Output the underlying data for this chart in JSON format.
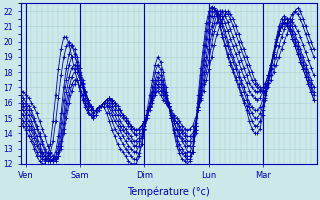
{
  "xlabel": "Température (°c)",
  "xlim": [
    0,
    110
  ],
  "ylim": [
    12,
    22.5
  ],
  "yticks": [
    12,
    13,
    14,
    15,
    16,
    17,
    18,
    19,
    20,
    21,
    22
  ],
  "day_positions": [
    2,
    22,
    46,
    70,
    90
  ],
  "day_labels": [
    "Ven",
    "Sam",
    "Dim",
    "Lun",
    "Mar"
  ],
  "day_vlines": [
    2,
    22,
    46,
    70,
    90
  ],
  "n_points": 110,
  "bg_color": "#cce8e8",
  "grid_color": "#aacccc",
  "line_color": "#0000bb",
  "series": [
    [
      16.8,
      16.7,
      16.5,
      16.3,
      16.0,
      15.7,
      15.3,
      14.8,
      14.3,
      13.8,
      13.2,
      12.8,
      12.5,
      12.4,
      12.5,
      13.0,
      14.0,
      15.0,
      16.0,
      16.8,
      17.2,
      17.5,
      17.0,
      16.5,
      16.0,
      15.5,
      15.2,
      15.0,
      15.2,
      15.5,
      15.8,
      16.0,
      16.2,
      16.3,
      16.2,
      16.0,
      15.8,
      15.5,
      15.2,
      15.0,
      14.8,
      14.5,
      14.3,
      14.2,
      14.3,
      14.5,
      14.8,
      15.2,
      15.5,
      16.0,
      16.5,
      16.8,
      16.5,
      16.2,
      16.0,
      15.8,
      15.5,
      15.2,
      15.0,
      14.8,
      14.5,
      14.3,
      14.2,
      14.3,
      14.5,
      15.0,
      15.5,
      16.2,
      16.8,
      17.5,
      18.2,
      19.0,
      19.8,
      20.5,
      21.0,
      21.5,
      21.8,
      22.0,
      21.8,
      21.5,
      21.0,
      20.5,
      20.0,
      19.5,
      19.0,
      18.5,
      18.0,
      17.5,
      17.2,
      17.0,
      16.8,
      16.8,
      17.0,
      17.5,
      18.0,
      18.5,
      19.0,
      19.5,
      20.0,
      20.5,
      21.0,
      21.5,
      22.0,
      22.2,
      22.0,
      21.5,
      21.0,
      20.5,
      20.0,
      19.5
    ],
    [
      16.5,
      16.3,
      16.0,
      15.8,
      15.5,
      15.0,
      14.5,
      14.0,
      13.5,
      13.0,
      12.7,
      12.5,
      12.3,
      12.3,
      12.5,
      13.2,
      14.3,
      15.5,
      16.5,
      17.2,
      17.5,
      17.5,
      17.0,
      16.5,
      16.0,
      15.5,
      15.2,
      15.0,
      15.2,
      15.5,
      15.8,
      16.0,
      16.2,
      16.3,
      16.2,
      16.0,
      15.8,
      15.5,
      15.2,
      15.0,
      14.7,
      14.5,
      14.3,
      14.2,
      14.3,
      14.5,
      14.8,
      15.2,
      15.7,
      16.2,
      16.7,
      17.0,
      16.8,
      16.5,
      16.0,
      15.7,
      15.3,
      15.0,
      14.7,
      14.5,
      14.2,
      14.0,
      13.8,
      13.8,
      14.0,
      14.7,
      15.5,
      16.3,
      17.2,
      18.0,
      18.8,
      19.8,
      20.7,
      21.3,
      21.8,
      22.0,
      22.0,
      21.8,
      21.5,
      21.0,
      20.5,
      20.0,
      19.5,
      19.0,
      18.5,
      18.0,
      17.5,
      17.2,
      17.0,
      16.8,
      16.8,
      17.0,
      17.3,
      17.8,
      18.5,
      19.0,
      19.7,
      20.3,
      20.8,
      21.2,
      21.5,
      21.8,
      22.0,
      21.8,
      21.5,
      21.0,
      20.5,
      20.0,
      19.5,
      19.0
    ],
    [
      16.2,
      16.0,
      15.8,
      15.5,
      15.2,
      14.8,
      14.3,
      13.8,
      13.3,
      12.8,
      12.5,
      12.3,
      12.2,
      12.2,
      12.5,
      13.5,
      14.7,
      16.0,
      17.0,
      17.7,
      18.0,
      18.0,
      17.5,
      17.0,
      16.5,
      16.0,
      15.7,
      15.5,
      15.5,
      15.7,
      15.8,
      16.0,
      16.2,
      16.3,
      16.0,
      15.8,
      15.5,
      15.2,
      15.0,
      14.8,
      14.5,
      14.3,
      14.0,
      13.9,
      14.0,
      14.3,
      14.7,
      15.2,
      15.8,
      16.3,
      16.8,
      17.2,
      17.0,
      16.7,
      16.2,
      15.8,
      15.3,
      15.0,
      14.7,
      14.3,
      14.0,
      13.8,
      13.5,
      13.5,
      13.8,
      14.5,
      15.5,
      16.5,
      17.5,
      18.5,
      19.5,
      20.5,
      21.2,
      21.8,
      22.0,
      22.0,
      21.7,
      21.3,
      20.8,
      20.3,
      19.8,
      19.3,
      18.8,
      18.3,
      17.8,
      17.3,
      17.0,
      16.8,
      16.7,
      16.8,
      17.0,
      17.3,
      17.8,
      18.5,
      19.2,
      19.8,
      20.5,
      21.0,
      21.3,
      21.5,
      21.5,
      21.3,
      21.0,
      20.7,
      20.3,
      19.8,
      19.3,
      18.8,
      18.3,
      17.8
    ],
    [
      16.0,
      15.8,
      15.5,
      15.2,
      14.8,
      14.3,
      13.8,
      13.3,
      12.8,
      12.5,
      12.3,
      12.2,
      12.2,
      12.3,
      12.8,
      14.0,
      15.3,
      16.7,
      17.7,
      18.3,
      18.5,
      18.3,
      17.8,
      17.2,
      16.7,
      16.2,
      15.8,
      15.5,
      15.5,
      15.7,
      15.8,
      16.0,
      16.2,
      16.3,
      15.8,
      15.5,
      15.2,
      14.8,
      14.5,
      14.3,
      14.0,
      13.8,
      13.5,
      13.5,
      13.7,
      14.0,
      14.5,
      15.2,
      15.8,
      16.5,
      17.0,
      17.5,
      17.2,
      16.8,
      16.3,
      15.8,
      15.2,
      14.8,
      14.3,
      14.0,
      13.7,
      13.5,
      13.2,
      13.2,
      13.5,
      14.5,
      15.7,
      16.8,
      18.0,
      19.0,
      20.2,
      21.0,
      21.7,
      22.0,
      22.0,
      21.7,
      21.2,
      20.7,
      20.2,
      19.7,
      19.2,
      18.7,
      18.2,
      17.7,
      17.3,
      16.8,
      16.5,
      16.3,
      16.2,
      16.3,
      16.7,
      17.2,
      17.8,
      18.5,
      19.2,
      20.0,
      20.7,
      21.2,
      21.5,
      21.5,
      21.3,
      21.0,
      20.5,
      20.0,
      19.5,
      19.0,
      18.5,
      18.0,
      17.5,
      17.0
    ],
    [
      15.7,
      15.5,
      15.2,
      14.8,
      14.5,
      14.0,
      13.5,
      13.0,
      12.7,
      12.5,
      12.3,
      12.2,
      12.2,
      12.5,
      13.2,
      14.7,
      16.2,
      17.5,
      18.5,
      19.0,
      19.0,
      18.7,
      18.0,
      17.3,
      16.7,
      16.2,
      15.8,
      15.5,
      15.5,
      15.7,
      15.8,
      16.0,
      16.2,
      16.0,
      15.5,
      15.2,
      14.8,
      14.5,
      14.2,
      14.0,
      13.7,
      13.5,
      13.2,
      13.2,
      13.5,
      13.8,
      14.3,
      15.0,
      15.7,
      16.5,
      17.2,
      17.7,
      17.5,
      17.0,
      16.5,
      15.8,
      15.2,
      14.7,
      14.2,
      13.8,
      13.5,
      13.2,
      12.8,
      12.8,
      13.2,
      14.2,
      15.7,
      17.0,
      18.5,
      19.7,
      20.8,
      21.7,
      22.0,
      22.0,
      21.7,
      21.2,
      20.7,
      20.0,
      19.5,
      19.0,
      18.5,
      18.0,
      17.5,
      17.0,
      16.5,
      16.0,
      15.7,
      15.5,
      15.5,
      15.7,
      16.2,
      16.8,
      17.5,
      18.3,
      19.0,
      19.8,
      20.5,
      21.0,
      21.2,
      21.2,
      21.0,
      20.7,
      20.2,
      19.7,
      19.2,
      18.7,
      18.2,
      17.7,
      17.2,
      16.7
    ],
    [
      15.3,
      15.2,
      14.8,
      14.5,
      14.2,
      13.7,
      13.2,
      12.8,
      12.5,
      12.3,
      12.2,
      12.2,
      12.3,
      12.8,
      13.8,
      15.3,
      17.0,
      18.3,
      19.2,
      19.7,
      19.5,
      19.0,
      18.3,
      17.5,
      16.8,
      16.2,
      15.8,
      15.5,
      15.5,
      15.7,
      15.8,
      16.0,
      16.0,
      15.7,
      15.2,
      14.8,
      14.5,
      14.2,
      13.8,
      13.5,
      13.2,
      13.0,
      12.8,
      12.8,
      13.2,
      13.7,
      14.3,
      15.0,
      15.8,
      16.7,
      17.5,
      18.0,
      17.8,
      17.2,
      16.5,
      15.8,
      15.0,
      14.3,
      13.8,
      13.3,
      13.0,
      12.7,
      12.5,
      12.5,
      12.8,
      14.0,
      15.7,
      17.3,
      18.8,
      20.2,
      21.3,
      22.0,
      22.2,
      22.0,
      21.5,
      21.0,
      20.3,
      19.7,
      19.2,
      18.7,
      18.2,
      17.7,
      17.2,
      16.7,
      16.2,
      15.7,
      15.3,
      15.0,
      15.0,
      15.3,
      15.8,
      16.5,
      17.3,
      18.2,
      19.0,
      19.8,
      20.5,
      21.0,
      21.2,
      21.0,
      20.7,
      20.2,
      19.7,
      19.2,
      18.7,
      18.2,
      17.7,
      17.2,
      16.7,
      16.2
    ],
    [
      15.0,
      14.8,
      14.5,
      14.2,
      13.8,
      13.3,
      12.8,
      12.5,
      12.3,
      12.2,
      12.3,
      12.7,
      13.5,
      14.8,
      16.3,
      17.8,
      19.0,
      19.7,
      20.0,
      19.8,
      19.2,
      18.5,
      17.7,
      17.0,
      16.3,
      15.8,
      15.5,
      15.3,
      15.5,
      15.7,
      15.8,
      16.0,
      15.8,
      15.3,
      14.8,
      14.3,
      14.0,
      13.7,
      13.3,
      13.0,
      12.8,
      12.5,
      12.3,
      12.3,
      12.7,
      13.3,
      14.2,
      15.2,
      16.0,
      17.0,
      18.0,
      18.5,
      18.2,
      17.5,
      16.7,
      15.8,
      15.0,
      14.2,
      13.5,
      13.0,
      12.7,
      12.5,
      12.3,
      12.3,
      12.8,
      14.2,
      16.0,
      17.8,
      19.3,
      20.7,
      21.7,
      22.2,
      22.2,
      21.8,
      21.2,
      20.5,
      19.8,
      19.2,
      18.7,
      18.2,
      17.7,
      17.2,
      16.7,
      16.2,
      15.8,
      15.3,
      14.8,
      14.5,
      14.5,
      14.8,
      15.5,
      16.3,
      17.3,
      18.2,
      19.2,
      20.0,
      20.7,
      21.2,
      21.3,
      21.2,
      20.8,
      20.2,
      19.7,
      19.2,
      18.7,
      18.2,
      17.7,
      17.2,
      16.7,
      16.2
    ],
    [
      14.7,
      14.5,
      14.2,
      13.8,
      13.5,
      13.0,
      12.5,
      12.2,
      12.0,
      12.0,
      12.5,
      13.3,
      14.8,
      16.5,
      18.2,
      19.5,
      20.3,
      20.3,
      19.8,
      19.0,
      18.2,
      17.5,
      16.8,
      16.2,
      15.7,
      15.3,
      15.2,
      15.2,
      15.5,
      15.7,
      15.8,
      15.7,
      15.3,
      14.8,
      14.2,
      13.8,
      13.3,
      13.0,
      12.8,
      12.5,
      12.2,
      12.0,
      12.0,
      12.0,
      12.5,
      13.3,
      14.3,
      15.5,
      16.5,
      17.5,
      18.5,
      19.0,
      18.7,
      18.0,
      17.0,
      16.0,
      15.0,
      14.0,
      13.2,
      12.7,
      12.3,
      12.2,
      12.0,
      12.2,
      12.8,
      14.5,
      16.5,
      18.3,
      19.8,
      21.2,
      22.0,
      22.3,
      22.2,
      21.7,
      21.0,
      20.3,
      19.7,
      19.0,
      18.5,
      18.0,
      17.5,
      17.0,
      16.5,
      16.0,
      15.5,
      14.8,
      14.3,
      14.0,
      14.0,
      14.3,
      15.2,
      16.2,
      17.3,
      18.3,
      19.3,
      20.2,
      21.0,
      21.5,
      21.7,
      21.5,
      21.0,
      20.5,
      20.0,
      19.5,
      19.0,
      18.5,
      18.0,
      17.5,
      17.0,
      16.5
    ]
  ]
}
